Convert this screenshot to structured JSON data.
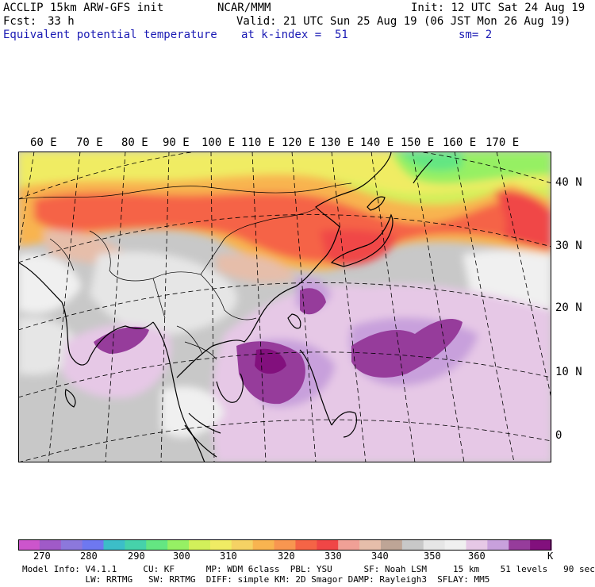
{
  "header": {
    "title": "ACCLIP 15km ARW-GFS init",
    "org": "NCAR/MMM",
    "init": "Init: 12 UTC Sat 24 Aug 19",
    "fcst_label": "Fcst:",
    "fcst_value": "33 h",
    "valid": "Valid: 21 UTC Sun 25 Aug 19 (06 JST Mon 26 Aug 19)",
    "field": "Equivalent potential temperature",
    "level": "at k-index =  51",
    "smooth": "sm= 2"
  },
  "lon_labels": [
    "60 E",
    "70 E",
    "80 E",
    "90 E",
    "100 E",
    "110 E",
    "120 E",
    "130 E",
    "140 E",
    "150 E",
    "160 E",
    "170 E"
  ],
  "lat_labels": [
    "40 N",
    "30 N",
    "20 N",
    "10 N",
    "0"
  ],
  "colorbar": {
    "colors": [
      "#cc55cc",
      "#a05ac8",
      "#8c78dc",
      "#6e78f0",
      "#3cbec8",
      "#46d2aa",
      "#64e682",
      "#96f064",
      "#d2f05a",
      "#f0ec64",
      "#f5d264",
      "#f8b450",
      "#f89650",
      "#f56446",
      "#f04646",
      "#f0a096",
      "#e6beaa",
      "#bea596",
      "#c8c8c8",
      "#e6e6e6",
      "#f0f0f0",
      "#e6c8e6",
      "#c8a0dc",
      "#963c9b",
      "#82107d"
    ],
    "ticks": [
      "270",
      "280",
      "290",
      "300",
      "310",
      "320",
      "330",
      "340",
      "350",
      "360",
      "K"
    ]
  },
  "footer": {
    "line1": "Model Info: V4.1.1     CU: KF      MP: WDM 6class  PBL: YSU      SF: Noah LSM     15 km    51 levels   90 sec",
    "line2": "            LW: RRTMG   SW: RRTMG  DIFF: simple KM: 2D Smagor DAMP: Rayleigh3  SFLAY: MM5"
  }
}
